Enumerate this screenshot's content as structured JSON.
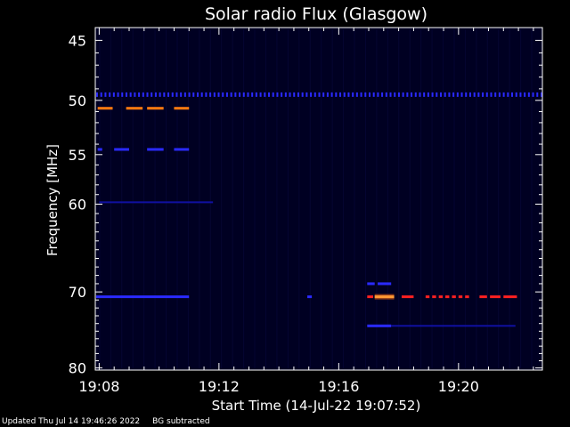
{
  "footer": {
    "updated": "Updated Thu Jul 14 19:46:26 2022",
    "note": "BG subtracted"
  },
  "chart_data": {
    "type": "heatmap",
    "title": "Solar radio Flux (Glasgow)",
    "xlabel": "Start Time (14-Jul-22 19:07:52)",
    "ylabel": "Frequency [MHz]",
    "x_tick_labels": [
      "19:08",
      "19:12",
      "19:16",
      "19:20"
    ],
    "x_ticks_min": [
      8,
      12,
      16,
      20
    ],
    "xlim_min": [
      7.87,
      22.8
    ],
    "y_ticks": [
      45,
      50,
      55,
      60,
      70,
      80
    ],
    "ylim": [
      44,
      80.3
    ],
    "y_reversed": true,
    "y_scale": "log",
    "background": "#000022",
    "colors": {
      "low": "#1010a0",
      "mid": "#2a2aff",
      "high_red": "#ff2020",
      "high_orange": "#ff7a10",
      "peak": "#ffd060"
    },
    "features": [
      {
        "freq": 49.5,
        "t_start": 7.9,
        "t_end": 22.8,
        "level": "mid",
        "pattern": "dotted"
      },
      {
        "freq": 50.7,
        "t_start": 7.95,
        "t_end": 8.45,
        "level": "high_orange"
      },
      {
        "freq": 50.7,
        "t_start": 8.9,
        "t_end": 9.45,
        "level": "high_orange"
      },
      {
        "freq": 50.7,
        "t_start": 9.6,
        "t_end": 10.15,
        "level": "high_orange"
      },
      {
        "freq": 50.7,
        "t_start": 10.5,
        "t_end": 11.0,
        "level": "high_orange"
      },
      {
        "freq": 54.5,
        "t_start": 7.95,
        "t_end": 8.1,
        "level": "mid"
      },
      {
        "freq": 54.5,
        "t_start": 8.5,
        "t_end": 9.0,
        "level": "mid"
      },
      {
        "freq": 54.5,
        "t_start": 9.6,
        "t_end": 10.15,
        "level": "mid"
      },
      {
        "freq": 54.5,
        "t_start": 10.5,
        "t_end": 11.0,
        "level": "mid"
      },
      {
        "freq": 59.8,
        "t_start": 8.0,
        "t_end": 11.8,
        "level": "low"
      },
      {
        "freq": 69.0,
        "t_start": 16.95,
        "t_end": 17.2,
        "level": "mid"
      },
      {
        "freq": 69.0,
        "t_start": 17.3,
        "t_end": 17.75,
        "level": "mid"
      },
      {
        "freq": 70.6,
        "t_start": 7.9,
        "t_end": 11.0,
        "level": "mid"
      },
      {
        "freq": 70.6,
        "t_start": 14.95,
        "t_end": 15.1,
        "level": "mid"
      },
      {
        "freq": 70.6,
        "t_start": 16.95,
        "t_end": 17.15,
        "level": "high_red"
      },
      {
        "freq": 70.6,
        "t_start": 17.2,
        "t_end": 17.85,
        "level": "peak"
      },
      {
        "freq": 70.6,
        "t_start": 18.1,
        "t_end": 18.5,
        "level": "high_red"
      },
      {
        "freq": 70.6,
        "t_start": 18.9,
        "t_end": 20.3,
        "level": "high_red",
        "pattern": "dashed"
      },
      {
        "freq": 70.6,
        "t_start": 20.7,
        "t_end": 20.95,
        "level": "high_red"
      },
      {
        "freq": 70.6,
        "t_start": 21.05,
        "t_end": 21.4,
        "level": "high_red"
      },
      {
        "freq": 70.6,
        "t_start": 21.5,
        "t_end": 21.95,
        "level": "high_red"
      },
      {
        "freq": 74.3,
        "t_start": 16.95,
        "t_end": 17.75,
        "level": "mid"
      },
      {
        "freq": 74.3,
        "t_start": 17.75,
        "t_end": 21.9,
        "level": "low"
      }
    ]
  }
}
